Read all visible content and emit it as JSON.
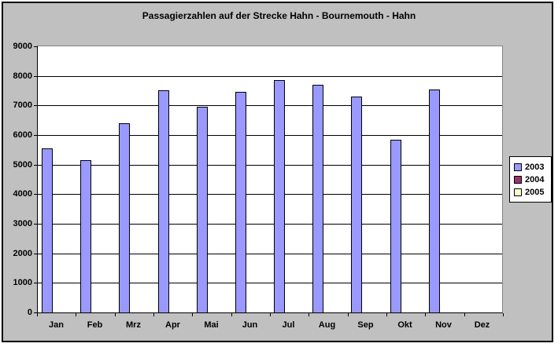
{
  "chart": {
    "background_color": "#c0c0c0",
    "plot_background_color": "#ffffff",
    "gridline_color": "#000000",
    "bar_border_color": "#000000"
  },
  "chart_data": {
    "type": "bar",
    "title": "Passagierzahlen auf der Strecke Hahn - Bournemouth - Hahn",
    "categories": [
      "Jan",
      "Feb",
      "Mrz",
      "Apr",
      "Mai",
      "Jun",
      "Jul",
      "Aug",
      "Sep",
      "Okt",
      "Nov",
      "Dez"
    ],
    "series": [
      {
        "name": "2003",
        "color": "#9999ff",
        "values": [
          5550,
          5150,
          6400,
          7500,
          6950,
          7450,
          7850,
          7700,
          7300,
          5850,
          7550,
          0
        ]
      },
      {
        "name": "2004",
        "color": "#993366",
        "values": []
      },
      {
        "name": "2005",
        "color": "#ffffcc",
        "values": []
      }
    ],
    "xlabel": "",
    "ylabel": "",
    "ylim": [
      0,
      9000
    ],
    "ytick_step": 1000,
    "ytick_labels": [
      "0",
      "1000",
      "2000",
      "3000",
      "4000",
      "5000",
      "6000",
      "7000",
      "8000",
      "9000"
    ],
    "grid": true,
    "legend_position": "right",
    "legend_entries": [
      "2003",
      "2004",
      "2005"
    ]
  }
}
